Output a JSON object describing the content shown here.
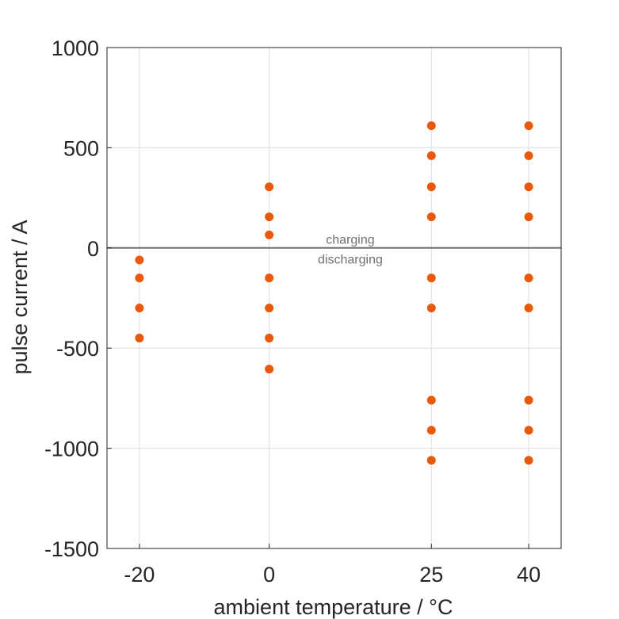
{
  "chart_data": {
    "type": "scatter",
    "xlabel": "ambient temperature / °C",
    "ylabel": "pulse current / A",
    "xlim": [
      -25,
      45
    ],
    "ylim": [
      -1500,
      1000
    ],
    "x_ticks": [
      -20,
      0,
      25,
      40
    ],
    "x_tick_labels": [
      "-20",
      "0",
      "25",
      "40"
    ],
    "y_ticks": [
      1000,
      500,
      0,
      -500,
      -1000,
      -1500
    ],
    "y_tick_labels": [
      "1000",
      "500",
      "0",
      "-500",
      "-1000",
      "-1500"
    ],
    "grid": true,
    "marker_color": "#E8590C",
    "zero_line_color": "#707070",
    "annotations": [
      {
        "text": "charging",
        "x": 12.5,
        "y": 45
      },
      {
        "text": "discharging",
        "x": 12.5,
        "y": -55
      }
    ],
    "series": [
      {
        "points": [
          {
            "x": -20,
            "y": -60
          },
          {
            "x": -20,
            "y": -150
          },
          {
            "x": -20,
            "y": -300
          },
          {
            "x": -20,
            "y": -450
          },
          {
            "x": 0,
            "y": 305
          },
          {
            "x": 0,
            "y": 155
          },
          {
            "x": 0,
            "y": 65
          },
          {
            "x": 0,
            "y": -150
          },
          {
            "x": 0,
            "y": -300
          },
          {
            "x": 0,
            "y": -450
          },
          {
            "x": 0,
            "y": -605
          },
          {
            "x": 25,
            "y": 610
          },
          {
            "x": 25,
            "y": 460
          },
          {
            "x": 25,
            "y": 305
          },
          {
            "x": 25,
            "y": 155
          },
          {
            "x": 25,
            "y": -150
          },
          {
            "x": 25,
            "y": -300
          },
          {
            "x": 25,
            "y": -760
          },
          {
            "x": 25,
            "y": -910
          },
          {
            "x": 25,
            "y": -1060
          },
          {
            "x": 40,
            "y": 610
          },
          {
            "x": 40,
            "y": 460
          },
          {
            "x": 40,
            "y": 305
          },
          {
            "x": 40,
            "y": 155
          },
          {
            "x": 40,
            "y": -150
          },
          {
            "x": 40,
            "y": -300
          },
          {
            "x": 40,
            "y": -760
          },
          {
            "x": 40,
            "y": -910
          },
          {
            "x": 40,
            "y": -1060
          }
        ]
      }
    ]
  }
}
